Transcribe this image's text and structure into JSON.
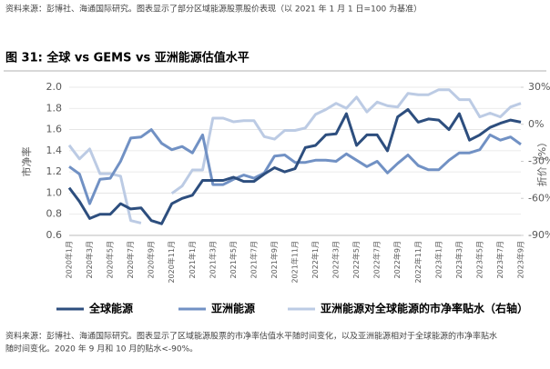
{
  "chart_data": {
    "type": "line",
    "top_note": "资料来源：彭博社、海通国际研究。图表显示了部分区域能源股票股价表现（以 2021 年 1 月 1 日=100 为基准）",
    "title": "图 31: 全球 vs GEMS vs 亚洲能源估值水平",
    "ylabel": "市净率",
    "y2label": "折价（%）",
    "footnote": [
      "资料来源：彭博社、海通国际研究。图表显示了区域能源股票的市净率估值水平随时间变化，以及亚洲能源相对于全球能源的市净率贴水",
      "随时间变化。2020 年 9 月和 10 月的贴水<-90%。"
    ],
    "categories": [
      "2020年1月",
      null,
      "2020年3月",
      null,
      "2020年5月",
      null,
      "2020年7月",
      null,
      "2020年9月",
      null,
      "2020年11月",
      null,
      "2021年1月",
      null,
      "2021年3月",
      null,
      "2021年5月",
      null,
      "2021年7月",
      null,
      "2021年9月",
      null,
      "2021年11月",
      null,
      "2022年1月",
      null,
      "2022年3月",
      null,
      "2022年5月",
      null,
      "2022年7月",
      null,
      "2022年9月",
      null,
      "2022年11月",
      null,
      "2023年1月",
      null,
      "2023年3月",
      null,
      "2023年5月",
      null,
      "2023年7月",
      null,
      "2023年9月"
    ],
    "series": [
      {
        "name": "全球能源",
        "color": "#2d4e7e",
        "values": [
          1.05,
          0.92,
          0.76,
          0.8,
          0.8,
          0.9,
          0.85,
          0.86,
          0.74,
          0.71,
          0.9,
          0.95,
          0.98,
          1.12,
          1.12,
          1.12,
          1.15,
          1.11,
          1.11,
          1.18,
          1.24,
          1.2,
          1.23,
          1.43,
          1.45,
          1.55,
          1.56,
          1.75,
          1.45,
          1.55,
          1.55,
          1.4,
          1.72,
          1.79,
          1.67,
          1.7,
          1.69,
          1.6,
          1.75,
          1.5,
          1.55,
          1.62,
          1.66,
          1.69,
          1.67
        ]
      },
      {
        "name": "亚洲能源",
        "color": "#7191c4",
        "values": [
          1.25,
          1.18,
          0.9,
          1.13,
          1.14,
          1.3,
          1.52,
          1.53,
          1.6,
          1.47,
          1.41,
          1.44,
          1.38,
          1.55,
          1.08,
          1.08,
          1.13,
          1.17,
          1.14,
          1.19,
          1.35,
          1.36,
          1.29,
          1.29,
          1.31,
          1.31,
          1.3,
          1.37,
          1.31,
          1.25,
          1.3,
          1.19,
          1.28,
          1.36,
          1.26,
          1.22,
          1.22,
          1.31,
          1.38,
          1.38,
          1.41,
          1.55,
          1.5,
          1.53,
          1.46
        ]
      },
      {
        "name": "亚洲能源对全球能源的市净率贴水（右轴）",
        "color": "#bccbe4",
        "axis": "y2",
        "values": [
          -17,
          -28,
          -20,
          -40,
          -40,
          -42,
          -78,
          -80,
          null,
          null,
          -56,
          -50,
          -37,
          -37,
          5,
          5,
          2,
          3,
          3,
          -10,
          -12,
          -5,
          -5,
          -3,
          8,
          12,
          17,
          13,
          22,
          10,
          18,
          15,
          14,
          25,
          24,
          24,
          28,
          28,
          20,
          20,
          6,
          9,
          6,
          14,
          17
        ]
      }
    ],
    "ylim": [
      0.6,
      2.0
    ],
    "yticks": [
      0.6,
      0.8,
      {
        "value": 1,
        "label": "1.0"
      },
      1.2,
      1.4,
      1.6,
      1.8,
      {
        "value": 2,
        "label": "2.0"
      }
    ],
    "y2lim": [
      -90,
      30
    ],
    "y2ticks": [
      {
        "value": -90,
        "label": "-90%"
      },
      {
        "value": -60,
        "label": "-60%"
      },
      {
        "value": -30,
        "label": "-30%"
      },
      {
        "value": 0,
        "label": "0%"
      },
      {
        "value": 30,
        "label": "30%"
      }
    ],
    "legend": "bottom"
  }
}
